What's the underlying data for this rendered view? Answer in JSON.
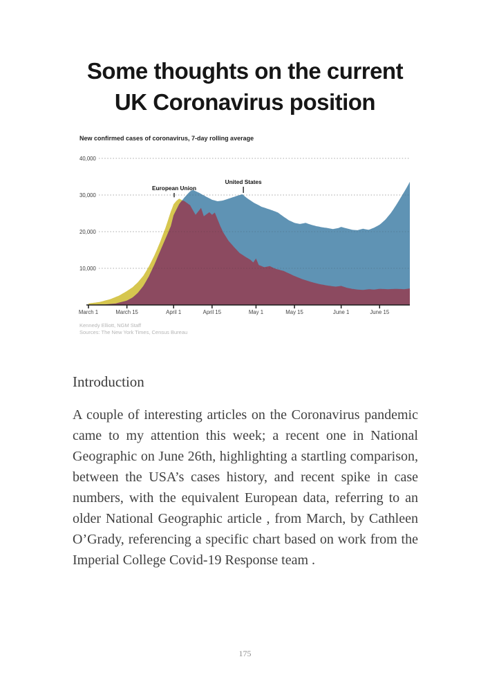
{
  "page": {
    "title_line1": "Some thoughts on the current",
    "title_line2": "UK Coronavirus position",
    "intro_heading": "Introduction",
    "body_paragraph": "A couple of interesting articles on the Coronavirus pandemic came to my attention this week; a recent one in National Geographic on June 26th, highlighting a startling comparison, between the USA’s cases history, and recent spike in case numbers, with the equivalent European data, referring to an older National Geographic article , from March, by Cathleen O’Grady, referencing a specific chart based on work from the Imperial College Covid-19 Response team .",
    "page_number": "175"
  },
  "chart_data": {
    "type": "area",
    "title": "New confirmed cases of coronavirus, 7-day rolling average",
    "credit_line1": "Kennedy Elliott, NGM Staff",
    "credit_line2": "Sources: The New York Times, Census Bureau",
    "x_tick_labels": [
      "March 1",
      "March 15",
      "April 1",
      "April 15",
      "May 1",
      "May 15",
      "June 1",
      "June 15"
    ],
    "x_tick_days": [
      0,
      14,
      31,
      45,
      61,
      75,
      92,
      106
    ],
    "x_range_days": [
      0,
      117
    ],
    "y_ticks": [
      10000,
      20000,
      30000,
      40000
    ],
    "y_tick_labels": [
      "10,000",
      "20,000",
      "30,000",
      "40,000"
    ],
    "ylim": [
      0,
      42000
    ],
    "grid": "dotted",
    "legend_position": "inline-annotations",
    "colors": {
      "eu": "#d6c64f",
      "us": "#5f93b4",
      "overlap": "#8c4a60",
      "grid": "#c9c9c9",
      "grid_overlay": "rgba(45,45,45,0.22)",
      "axis": "#1a1a1a",
      "tick_text": "#444444",
      "annotation_text": "#111111"
    },
    "annotations": [
      {
        "label": "European Union",
        "day": 31.2,
        "value": 29000,
        "text_y": 83
      },
      {
        "label": "United States",
        "day": 56.4,
        "value": 30200,
        "text_y": 74
      }
    ],
    "series": [
      {
        "name": "European Union",
        "points": [
          [
            0,
            400
          ],
          [
            4,
            800
          ],
          [
            8,
            1600
          ],
          [
            11,
            2500
          ],
          [
            14,
            3800
          ],
          [
            16,
            4800
          ],
          [
            18,
            6200
          ],
          [
            20,
            8000
          ],
          [
            22,
            10500
          ],
          [
            24,
            13500
          ],
          [
            26,
            17000
          ],
          [
            28,
            21000
          ],
          [
            30,
            25500
          ],
          [
            31,
            27500
          ],
          [
            32,
            28400
          ],
          [
            33,
            29000
          ],
          [
            35,
            28300
          ],
          [
            37,
            27200
          ],
          [
            39,
            24600
          ],
          [
            41,
            26500
          ],
          [
            42,
            24200
          ],
          [
            44,
            25300
          ],
          [
            45,
            24600
          ],
          [
            46,
            25200
          ],
          [
            48,
            21500
          ],
          [
            49,
            19900
          ],
          [
            51,
            17500
          ],
          [
            53,
            15800
          ],
          [
            55,
            14200
          ],
          [
            57,
            13200
          ],
          [
            59,
            12300
          ],
          [
            60,
            11600
          ],
          [
            61,
            12700
          ],
          [
            62,
            10900
          ],
          [
            64,
            10300
          ],
          [
            66,
            10600
          ],
          [
            68,
            9900
          ],
          [
            71,
            9300
          ],
          [
            73,
            8600
          ],
          [
            75,
            7900
          ],
          [
            78,
            7000
          ],
          [
            81,
            6300
          ],
          [
            84,
            5700
          ],
          [
            87,
            5300
          ],
          [
            90,
            5000
          ],
          [
            92,
            5200
          ],
          [
            94,
            4700
          ],
          [
            96,
            4400
          ],
          [
            98,
            4200
          ],
          [
            100,
            4100
          ],
          [
            102,
            4300
          ],
          [
            104,
            4200
          ],
          [
            106,
            4400
          ],
          [
            109,
            4300
          ],
          [
            112,
            4400
          ],
          [
            115,
            4300
          ],
          [
            117,
            4500
          ]
        ]
      },
      {
        "name": "United States",
        "points": [
          [
            0,
            50
          ],
          [
            6,
            150
          ],
          [
            10,
            400
          ],
          [
            14,
            1200
          ],
          [
            16,
            2000
          ],
          [
            18,
            3300
          ],
          [
            20,
            5200
          ],
          [
            22,
            7800
          ],
          [
            24,
            11000
          ],
          [
            26,
            14500
          ],
          [
            28,
            18000
          ],
          [
            30,
            21500
          ],
          [
            31,
            24500
          ],
          [
            33,
            27500
          ],
          [
            35,
            29400
          ],
          [
            37,
            31000
          ],
          [
            38,
            31400
          ],
          [
            40,
            30700
          ],
          [
            42,
            29900
          ],
          [
            44,
            29100
          ],
          [
            45,
            28700
          ],
          [
            47,
            28300
          ],
          [
            49,
            28500
          ],
          [
            51,
            29000
          ],
          [
            53,
            29500
          ],
          [
            55,
            30000
          ],
          [
            56,
            30200
          ],
          [
            58,
            29000
          ],
          [
            60,
            28000
          ],
          [
            61,
            27600
          ],
          [
            63,
            26800
          ],
          [
            65,
            26300
          ],
          [
            67,
            25800
          ],
          [
            69,
            25200
          ],
          [
            71,
            24100
          ],
          [
            73,
            23100
          ],
          [
            75,
            22400
          ],
          [
            77,
            22100
          ],
          [
            79,
            22400
          ],
          [
            81,
            21900
          ],
          [
            83,
            21500
          ],
          [
            85,
            21200
          ],
          [
            87,
            21000
          ],
          [
            89,
            20700
          ],
          [
            91,
            21000
          ],
          [
            92,
            21300
          ],
          [
            94,
            20900
          ],
          [
            96,
            20500
          ],
          [
            98,
            20400
          ],
          [
            100,
            20800
          ],
          [
            102,
            20500
          ],
          [
            104,
            21100
          ],
          [
            106,
            21900
          ],
          [
            108,
            23200
          ],
          [
            110,
            25000
          ],
          [
            112,
            27200
          ],
          [
            114,
            29700
          ],
          [
            116,
            32200
          ],
          [
            117,
            33600
          ]
        ]
      }
    ]
  }
}
